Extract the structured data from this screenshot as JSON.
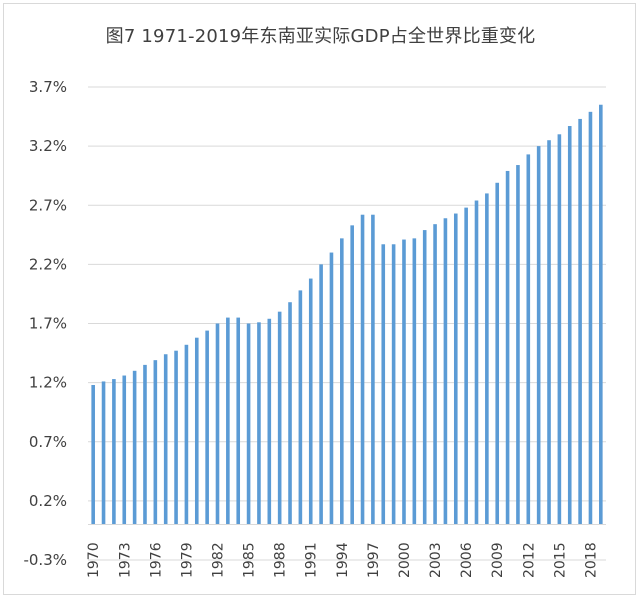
{
  "chart_data": {
    "type": "bar",
    "title": "图7 1971-2019年东南亚实际GDP占全世界比重变化",
    "xlabel": "",
    "ylabel": "",
    "ylim": [
      -0.3,
      3.7
    ],
    "y_ticks": [
      "-0.3%",
      "0.2%",
      "0.7%",
      "1.2%",
      "1.7%",
      "2.2%",
      "2.7%",
      "3.2%",
      "3.7%"
    ],
    "y_tick_values": [
      -0.3,
      0.2,
      0.7,
      1.2,
      1.7,
      2.2,
      2.7,
      3.2,
      3.7
    ],
    "x_tick_labels": [
      "1970",
      "1973",
      "1976",
      "1979",
      "1982",
      "1985",
      "1988",
      "1991",
      "1994",
      "1997",
      "2000",
      "2003",
      "2006",
      "2009",
      "2012",
      "2015",
      "2018"
    ],
    "grid": true,
    "legend": "none",
    "bar_color": "#5b9bd5",
    "categories": [
      1970,
      1971,
      1972,
      1973,
      1974,
      1975,
      1976,
      1977,
      1978,
      1979,
      1980,
      1981,
      1982,
      1983,
      1984,
      1985,
      1986,
      1987,
      1988,
      1989,
      1990,
      1991,
      1992,
      1993,
      1994,
      1995,
      1996,
      1997,
      1998,
      1999,
      2000,
      2001,
      2002,
      2003,
      2004,
      2005,
      2006,
      2007,
      2008,
      2009,
      2010,
      2011,
      2012,
      2013,
      2014,
      2015,
      2016,
      2017,
      2018,
      2019
    ],
    "values": [
      1.18,
      1.21,
      1.23,
      1.26,
      1.3,
      1.35,
      1.39,
      1.44,
      1.47,
      1.52,
      1.58,
      1.64,
      1.7,
      1.75,
      1.75,
      1.7,
      1.71,
      1.74,
      1.8,
      1.88,
      1.98,
      2.08,
      2.2,
      2.3,
      2.42,
      2.53,
      2.62,
      2.62,
      2.37,
      2.37,
      2.41,
      2.42,
      2.49,
      2.54,
      2.59,
      2.63,
      2.68,
      2.74,
      2.8,
      2.89,
      2.99,
      3.04,
      3.13,
      3.2,
      3.25,
      3.3,
      3.37,
      3.43,
      3.49,
      3.55
    ]
  }
}
